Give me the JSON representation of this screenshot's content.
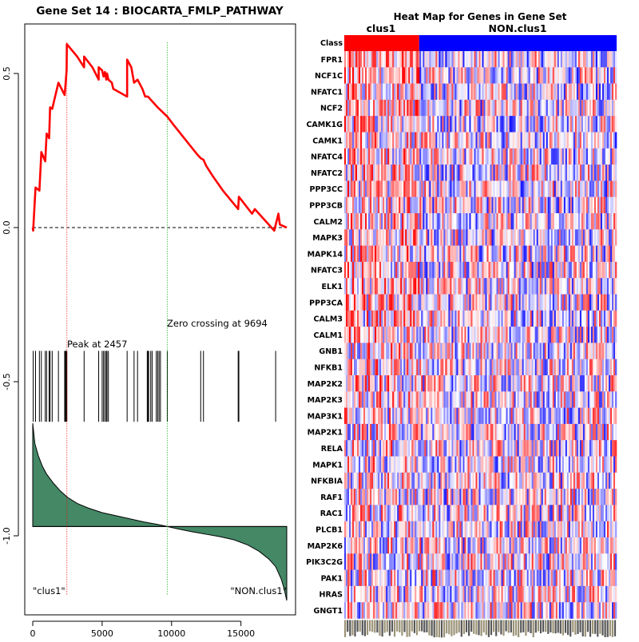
{
  "chart_data": [
    {
      "type": "line",
      "title": "Gene Set  14 : BIOCARTA_FMLP_PATHWAY",
      "xlabel": "",
      "ylabel": "",
      "xlim": [
        0,
        18500
      ],
      "ylim": [
        -1.25,
        0.65
      ],
      "x_ticks": [
        0,
        5000,
        10000,
        15000
      ],
      "y_ticks": [
        0.5,
        0.0,
        -0.5,
        -1.0
      ],
      "x_tick_labels": [
        "0",
        "5000",
        "10000",
        "15000"
      ],
      "y_tick_labels": [
        "0.5",
        "0.0",
        "-0.5",
        "-1.0"
      ],
      "enrichment_line_color": "#ff0000",
      "peak_line_color": "#ff0000",
      "zero_line_color": "#00aa00",
      "ranked_metric_fill": "#448866",
      "series": [
        {
          "name": "running enrichment score",
          "x": [
            0,
            30,
            30,
            200,
            200,
            480,
            480,
            620,
            620,
            900,
            900,
            1000,
            1000,
            1180,
            1180,
            1250,
            1250,
            1400,
            1400,
            1850,
            1850,
            2300,
            2300,
            2440,
            2440,
            2457,
            3200,
            3700,
            3700,
            4300,
            4750,
            4750,
            5000,
            5100,
            5200,
            5300,
            5350,
            5450,
            5700,
            5800,
            6800,
            6800,
            7100,
            7300,
            7550,
            7900,
            8100,
            8300,
            9000,
            9694,
            10200,
            11000,
            11800,
            12100,
            12300,
            12500,
            13000,
            13700,
            14800,
            14850,
            15800,
            16000,
            17400,
            17700,
            17800,
            18300
          ],
          "y": [
            0,
            -0.01,
            -0.01,
            0.13,
            0.13,
            0.12,
            0.12,
            0.245,
            0.245,
            0.215,
            0.215,
            0.305,
            0.305,
            0.29,
            0.29,
            0.39,
            0.39,
            0.385,
            0.385,
            0.47,
            0.47,
            0.43,
            0.43,
            0.51,
            0.51,
            0.595,
            0.555,
            0.52,
            0.555,
            0.52,
            0.48,
            0.52,
            0.51,
            0.49,
            0.505,
            0.48,
            0.5,
            0.48,
            0.47,
            0.45,
            0.425,
            0.545,
            0.52,
            0.47,
            0.48,
            0.45,
            0.425,
            0.425,
            0.39,
            0.36,
            0.33,
            0.285,
            0.24,
            0.225,
            0.22,
            0.2,
            0.165,
            0.12,
            0.06,
            0.1,
            0.045,
            0.06,
            -0.01,
            0.045,
            0.01,
            0
          ]
        },
        {
          "name": "ranked list metric",
          "x": [
            0,
            150,
            400,
            700,
            1000,
            1500,
            2000,
            2500,
            3200,
            4000,
            5000,
            6000,
            7000,
            8000,
            9000,
            9694,
            10500,
            11500,
            12500,
            13500,
            14500,
            15500,
            16300,
            17000,
            17500,
            17900,
            18100,
            18300
          ],
          "y": [
            -0.635,
            -0.7,
            -0.74,
            -0.775,
            -0.8,
            -0.83,
            -0.855,
            -0.875,
            -0.895,
            -0.91,
            -0.925,
            -0.935,
            -0.945,
            -0.955,
            -0.963,
            -0.97,
            -0.978,
            -0.987,
            -0.995,
            -1.003,
            -1.013,
            -1.03,
            -1.05,
            -1.075,
            -1.1,
            -1.14,
            -1.17,
            -1.21
          ]
        }
      ],
      "baseline_y": -0.97,
      "hit_positions": [
        30,
        200,
        480,
        620,
        900,
        1000,
        1180,
        1250,
        1400,
        1850,
        2300,
        2350,
        2400,
        2440,
        2457,
        3700,
        4750,
        5000,
        5100,
        5200,
        5300,
        5350,
        5450,
        6800,
        7300,
        7550,
        8250,
        8300,
        8350,
        8500,
        8600,
        8900,
        9000,
        9100,
        9200,
        9694,
        12100,
        12300,
        14800,
        14850,
        17500
      ],
      "hit_tick_range": [
        -0.4,
        -0.63
      ],
      "peak": {
        "x": 2457,
        "label": "Peak at 2457"
      },
      "zero_crossing": {
        "x": 9694,
        "label": "Zero crossing at 9694"
      },
      "corner_labels": {
        "left": "\"clus1\"",
        "right": "\"NON.clus1\""
      }
    },
    {
      "type": "heatmap",
      "title": "Heat Map for Genes in Gene Set",
      "class_row_label": "Class",
      "classes": [
        {
          "name": "clus1",
          "color": "#ff0000",
          "fraction": 0.275
        },
        {
          "name": "NON.clus1",
          "color": "#0000ff",
          "fraction": 0.725
        }
      ],
      "genes": [
        "FPR1",
        "NCF1C",
        "NFATC1",
        "NCF2",
        "CAMK1G",
        "CAMK1",
        "NFATC4",
        "NFATC2",
        "PPP3CC",
        "PPP3CB",
        "CALM2",
        "MAPK3",
        "MAPK14",
        "NFATC3",
        "ELK1",
        "PPP3CA",
        "CALM3",
        "CALM1",
        "GNB1",
        "NFKB1",
        "MAP2K2",
        "MAP2K3",
        "MAP3K1",
        "MAP2K1",
        "RELA",
        "MAPK1",
        "NFKBIA",
        "RAF1",
        "RAC1",
        "PLCB1",
        "MAP2K6",
        "PIK3C2G",
        "PAK1",
        "HRAS",
        "GNGT1"
      ],
      "high_color": "#ff0000",
      "low_color": "#0000ff",
      "mid_color": "#ffffff"
    }
  ]
}
